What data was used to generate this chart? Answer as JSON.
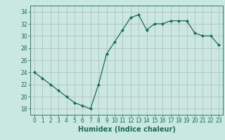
{
  "x": [
    0,
    1,
    2,
    3,
    4,
    5,
    6,
    7,
    8,
    9,
    10,
    11,
    12,
    13,
    14,
    15,
    16,
    17,
    18,
    19,
    20,
    21,
    22,
    23
  ],
  "y": [
    24,
    23,
    22,
    21,
    20,
    19,
    18.5,
    18,
    22,
    27,
    29,
    31,
    33,
    33.5,
    31,
    32,
    32,
    32.5,
    32.5,
    32.5,
    30.5,
    30,
    30,
    28.5
  ],
  "line_color": "#1a6b5a",
  "marker_color": "#1a6b5a",
  "bg_color": "#c8e8e0",
  "grid_color": "#b8a8a8",
  "xlabel": "Humidex (Indice chaleur)",
  "xlim": [
    -0.5,
    23.5
  ],
  "ylim": [
    17,
    35
  ],
  "yticks": [
    18,
    20,
    22,
    24,
    26,
    28,
    30,
    32,
    34
  ],
  "xticks": [
    0,
    1,
    2,
    3,
    4,
    5,
    6,
    7,
    8,
    9,
    10,
    11,
    12,
    13,
    14,
    15,
    16,
    17,
    18,
    19,
    20,
    21,
    22,
    23
  ],
  "tick_fontsize": 5.5,
  "xlabel_fontsize": 7.0
}
